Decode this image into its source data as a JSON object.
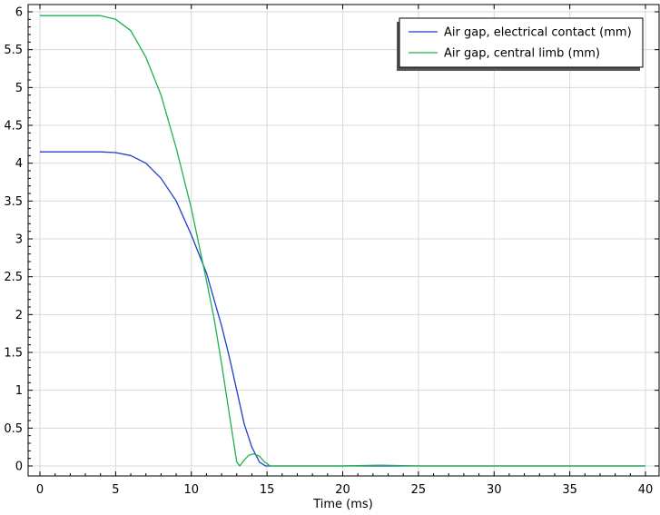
{
  "chart_data": {
    "type": "line",
    "title": "",
    "xlabel": "Time (ms)",
    "ylabel": "",
    "xlim": [
      0,
      40
    ],
    "ylim": [
      0,
      6
    ],
    "xticks": [
      "0",
      "5",
      "10",
      "15",
      "20",
      "25",
      "30",
      "35",
      "40"
    ],
    "yticks": [
      "0",
      "0.5",
      "1",
      "1.5",
      "2",
      "2.5",
      "3",
      "3.5",
      "4",
      "4.5",
      "5",
      "5.5",
      "6"
    ],
    "grid": true,
    "legend_position": "top-right",
    "series": [
      {
        "name": "Air gap, electrical contact (mm)",
        "color": "#1f3fcc",
        "x": [
          0,
          2,
          4,
          5,
          6,
          7,
          8,
          9,
          10,
          11,
          12,
          12.5,
          13,
          13.5,
          14,
          14.5,
          14.9,
          15.5,
          20,
          25,
          30,
          35,
          40
        ],
        "y": [
          4.15,
          4.15,
          4.15,
          4.14,
          4.1,
          4.0,
          3.8,
          3.5,
          3.05,
          2.55,
          1.85,
          1.45,
          1.0,
          0.55,
          0.25,
          0.05,
          0.0,
          0.0,
          0.0,
          0.0,
          0.0,
          0.0,
          0.0
        ]
      },
      {
        "name": "Air gap, central limb (mm)",
        "color": "#22b14c",
        "x": [
          0,
          2,
          4,
          5,
          6,
          7,
          8,
          9,
          10,
          11,
          11.5,
          12,
          12.5,
          13.0,
          13.2,
          13.5,
          13.8,
          14.1,
          14.5,
          14.8,
          15.2,
          16,
          20,
          22.5,
          25,
          30,
          35,
          40
        ],
        "y": [
          5.95,
          5.95,
          5.95,
          5.9,
          5.75,
          5.4,
          4.9,
          4.2,
          3.4,
          2.45,
          1.95,
          1.35,
          0.7,
          0.05,
          0.0,
          0.08,
          0.14,
          0.16,
          0.13,
          0.06,
          0.0,
          0.0,
          0.0,
          0.01,
          0.0,
          0.0,
          0.0,
          0.0
        ]
      }
    ]
  }
}
